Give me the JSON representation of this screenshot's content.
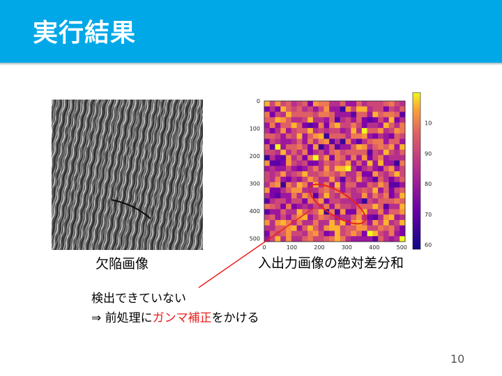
{
  "slide": {
    "title": "実行結果",
    "page_number": "10"
  },
  "left_figure": {
    "caption": "欠陥画像"
  },
  "right_figure": {
    "caption": "入出力画像の絶対差分和",
    "axis_ticks": [
      "0",
      "100",
      "200",
      "300",
      "400",
      "500"
    ],
    "colorbar_ticks": [
      "100",
      "90",
      "80",
      "70",
      "60"
    ]
  },
  "notes": {
    "line1": "検出できていない",
    "line2_prefix": "⇒ 前処理に",
    "line2_highlight": "ガンマ補正",
    "line2_suffix": "をかける"
  },
  "colors": {
    "header": "#00a8e8",
    "highlight": "#e8201c"
  }
}
